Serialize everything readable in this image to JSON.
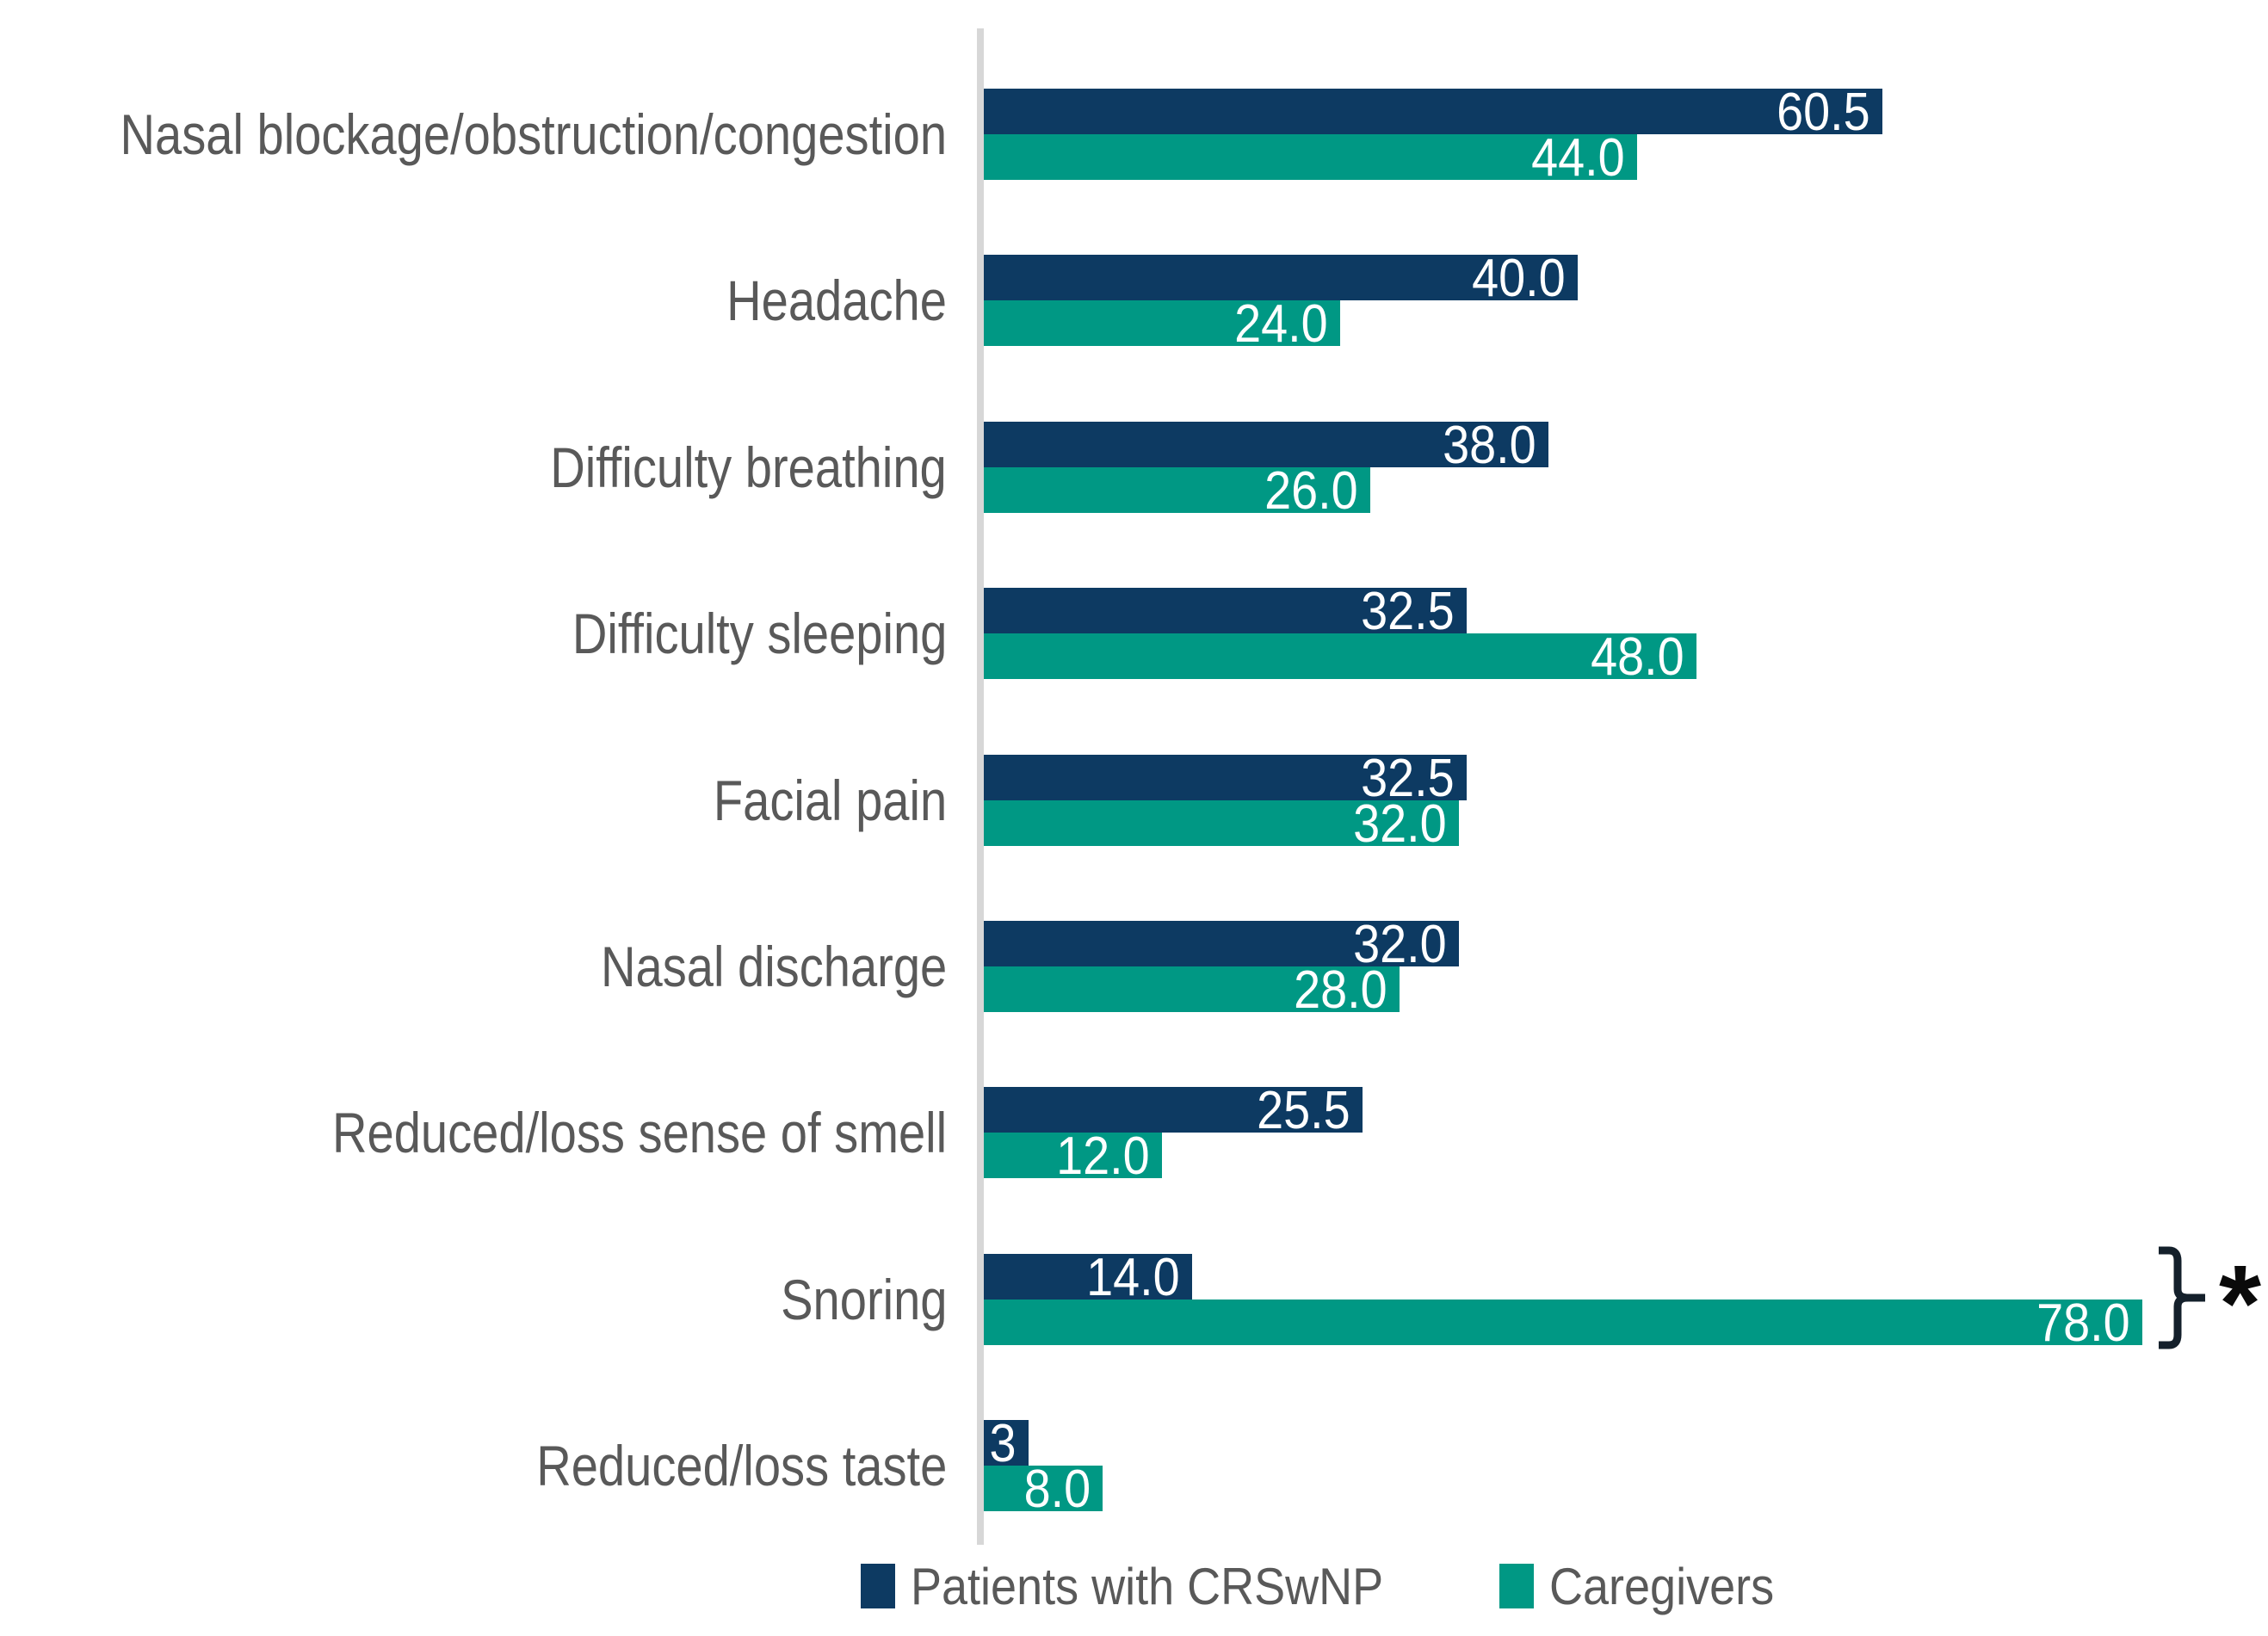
{
  "colors": {
    "patients_bar": "#0d3a62",
    "caregivers_bar": "#009884",
    "axis_line": "#d7d7d7",
    "category_text": "#595959",
    "value_text": "#ffffff",
    "bracket": "#14202b",
    "asterisk": "#0a0a0a",
    "background": "#ffffff"
  },
  "chart_data": {
    "type": "bar",
    "orientation": "horizontal",
    "title": "",
    "categories": [
      "Nasal blockage/obstruction/congestion",
      "Headache",
      "Difficulty breathing",
      "Difficulty sleeping",
      "Facial pain",
      "Nasal discharge",
      "Reduced/loss sense of smell",
      "Snoring",
      "Reduced/loss taste"
    ],
    "series": [
      {
        "name": "Patients with CRSwNP",
        "color": "#0d3a62",
        "values": [
          60.5,
          40.0,
          38.0,
          32.5,
          32.5,
          32.0,
          25.5,
          14.0,
          3
        ],
        "value_labels": [
          "60.5",
          "40.0",
          "38.0",
          "32.5",
          "32.5",
          "32.0",
          "25.5",
          "14.0",
          "3"
        ]
      },
      {
        "name": "Caregivers",
        "color": "#009884",
        "values": [
          44.0,
          24.0,
          26.0,
          48.0,
          32.0,
          28.0,
          12.0,
          78.0,
          8.0
        ],
        "value_labels": [
          "44.0",
          "24.0",
          "26.0",
          "48.0",
          "32.0",
          "28.0",
          "12.0",
          "78.0",
          "8.0"
        ]
      }
    ],
    "value_axis": {
      "min": 0,
      "max": 86.5,
      "visible": false
    },
    "gridlines": false,
    "legend_position": "bottom",
    "annotation": {
      "symbol": "*",
      "applies_to_category": "Snoring",
      "marker": "right curly bracket spanning both Snoring bars"
    }
  },
  "legend": {
    "items": [
      {
        "label": "Patients with CRSwNP",
        "color": "#0d3a62"
      },
      {
        "label": "Caregivers",
        "color": "#009884"
      }
    ]
  }
}
